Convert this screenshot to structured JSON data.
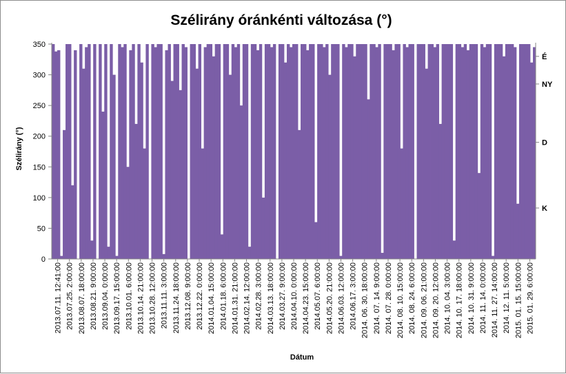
{
  "chart_data": {
    "type": "area",
    "title": "Szélirány óránkénti változása (°)",
    "xlabel": "Dátum",
    "ylabel": "Szélirány (°)",
    "ylim": [
      0,
      350
    ],
    "yticks": [
      0,
      50,
      100,
      150,
      200,
      250,
      300,
      350
    ],
    "right_axis_ticks": [
      {
        "label": "É",
        "value": 330
      },
      {
        "label": "NY",
        "value": 285
      },
      {
        "label": "D",
        "value": 190
      },
      {
        "label": "K",
        "value": 83
      }
    ],
    "grid": false,
    "legend": "none",
    "color": "#7b5ea7",
    "x_tick_labels": [
      "2013.07.11. 12:41:00",
      "2013.07.25. 2:00:00",
      "2013.08.07. 18:00:00",
      "2013.08.21. 9:00:00",
      "2013.09.04. 0:00:00",
      "2013.09.17. 15:00:00",
      "2013.10.01. 6:00:00",
      "2013.10.14. 21:00:00",
      "2013.10.28. 12:00:00",
      "2013.11.11. 3:00:00",
      "2013.11.24. 18:00:00",
      "2013.12.08. 9:00:00",
      "2013.12.22. 0:00:00",
      "2014.01.04. 15:00:00",
      "2014.01.18. 6:00:00",
      "2014.01.31. 21:00:00",
      "2014.02.14. 12:00:00",
      "2014.02.28. 3:00:00",
      "2014.03.13. 18:00:00",
      "2014.03.27. 9:00:00",
      "2014.04.10. 0:00:00",
      "2014.04.23. 15:00:00",
      "2014.05.07. 6:00:00",
      "2014.05.20. 21:00:00",
      "2014.06.03. 12:00:00",
      "2014.06.17. 3:00:00",
      "2014. 06. 30. 18:00:00",
      "2014. 07. 14. 9:00:00",
      "2014. 07. 28. 0:00:00",
      "2014. 08. 10. 15:00:00",
      "2014. 08. 24. 6:00:00",
      "2014. 09. 06. 21:00:00",
      "2014. 09. 20. 12:00:00",
      "2014. 10. 04. 3:00:00",
      "2014. 10. 17. 18:00:00",
      "2014. 10. 31. 9:00:00",
      "2014. 11. 14. 0:00:00",
      "2014. 11. 27. 14:00:00",
      "2014. 12. 11. 5:00:00",
      "2015. 01. 15. 15:00:00",
      "2015. 01. 29. 6:00:00"
    ],
    "series": [
      {
        "values": [
          350,
          338,
          340,
          5,
          210,
          350,
          352,
          120,
          340,
          0,
          352,
          310,
          345,
          352,
          30,
          350,
          0,
          355,
          240,
          350,
          20,
          352,
          300,
          5,
          350,
          345,
          352,
          150,
          340,
          355,
          220,
          352,
          320,
          180,
          352,
          0,
          350,
          345,
          350,
          352,
          8,
          340,
          352,
          290,
          350,
          355,
          275,
          352,
          345,
          0,
          352,
          350,
          310,
          352,
          180,
          345,
          352,
          355,
          330,
          350,
          352,
          40,
          352,
          350,
          300,
          352,
          345,
          350,
          250,
          352,
          355,
          20,
          350,
          352,
          340,
          352,
          100,
          350,
          352,
          345,
          352,
          0,
          350,
          355,
          320,
          352,
          345,
          350,
          352,
          210,
          350,
          352,
          340,
          355,
          352,
          60,
          350,
          352,
          345,
          352,
          300,
          350,
          352,
          355,
          5,
          352,
          345,
          350,
          352,
          330,
          352,
          350,
          355,
          352,
          260,
          350,
          352,
          345,
          352,
          10,
          350,
          352,
          355,
          340,
          352,
          350,
          180,
          352,
          345,
          350,
          352,
          0,
          350,
          355,
          352,
          310,
          352,
          350,
          345,
          352,
          220,
          350,
          352,
          355,
          352,
          30,
          350,
          352,
          345,
          352,
          340,
          355,
          352,
          350,
          140,
          352,
          345,
          350,
          352,
          5,
          350,
          352,
          355,
          330,
          352,
          350,
          352,
          345,
          90,
          350,
          352,
          355,
          352,
          320,
          345
        ]
      }
    ]
  }
}
